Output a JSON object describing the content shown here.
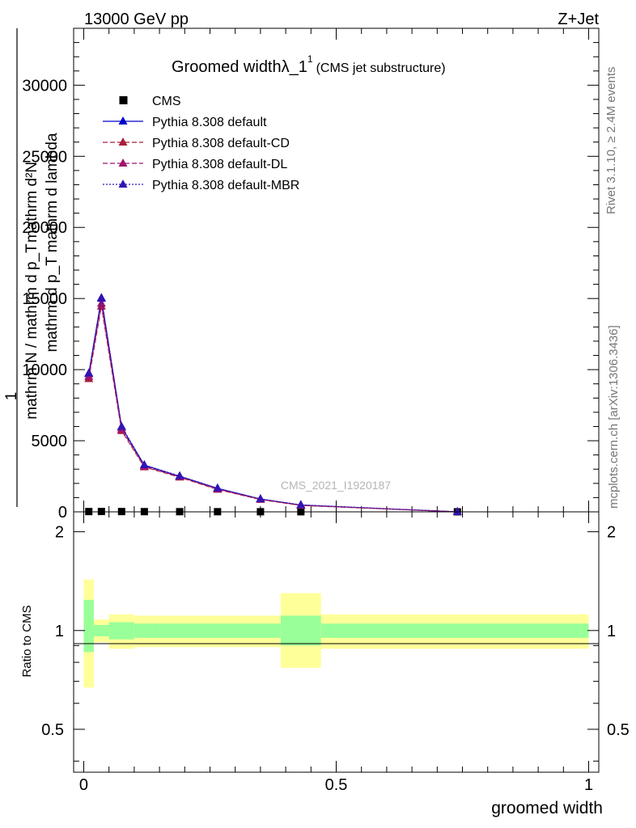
{
  "header": {
    "energy": "13000 GeV pp",
    "process": "Z+Jet",
    "rivet": "Rivet 3.1.10, ≥ 2.4M events",
    "site": "mcplots.cern.ch [arXiv:1306.3436]",
    "analysis": "CMS_2021_I1920187"
  },
  "chart_data": [
    {
      "type": "line",
      "title_main": "Groomed widthλ_1",
      "title_sup": "1",
      "title_sub": "(CMS jet substructure)",
      "ylabel_num": "mathrm d²N",
      "ylabel_den": "mathrm d p_T mathrm d lambda",
      "ylabel_prefix_num": "1",
      "ylabel_prefix_den": "mathrm N / mathrm d p_T",
      "ylim": [
        0,
        34000
      ],
      "xlim": [
        -0.02,
        1.02
      ],
      "yticks": [
        0,
        5000,
        10000,
        15000,
        20000,
        25000,
        30000
      ],
      "ytick_labels": [
        "0",
        "5000",
        "10000",
        "15000",
        "20000",
        "25000",
        "30000"
      ],
      "x": [
        0.01,
        0.035,
        0.075,
        0.12,
        0.19,
        0.265,
        0.35,
        0.43,
        0.74
      ],
      "series": [
        {
          "name": "CMS",
          "color": "#000000",
          "marker": "square",
          "values": [
            20,
            25,
            20,
            15,
            12,
            10,
            8,
            5,
            2
          ]
        },
        {
          "name": "Pythia 8.308 default",
          "color": "#0000cc",
          "marker": "triangle",
          "line": "solid",
          "values": [
            9700,
            15000,
            5950,
            3280,
            2500,
            1650,
            900,
            480,
            0
          ]
        },
        {
          "name": "Pythia 8.308 default-CD",
          "color": "#aa1e3c",
          "marker": "triangle",
          "line": "dashed",
          "values": [
            9350,
            14450,
            5700,
            3150,
            2430,
            1570,
            860,
            450,
            0
          ]
        },
        {
          "name": "Pythia 8.308 default-DL",
          "color": "#a0146e",
          "marker": "triangle",
          "line": "dashed",
          "values": [
            9500,
            14650,
            5800,
            3200,
            2460,
            1600,
            880,
            460,
            0
          ]
        },
        {
          "name": "Pythia 8.308 default-MBR",
          "color": "#3214b4",
          "marker": "triangle",
          "line": "dotted",
          "values": [
            9750,
            15050,
            6000,
            3300,
            2520,
            1660,
            910,
            490,
            0
          ]
        }
      ],
      "legend": "top-left"
    },
    {
      "type": "area",
      "ylabel": "Ratio to CMS",
      "xlabel": "groomed width",
      "ylim": [
        0.37,
        2.3
      ],
      "log_y": true,
      "yticks": [
        0.5,
        1,
        2
      ],
      "ytick_labels": [
        "0.5",
        "1",
        "2"
      ],
      "xticks": [
        0,
        0.5,
        1
      ],
      "xtick_labels": [
        "0",
        "0.5",
        "1"
      ],
      "bins": [
        {
          "lo": 0.0,
          "hi": 0.02,
          "stat_lo": 0.86,
          "stat_hi": 1.24,
          "tot_lo": 0.67,
          "tot_hi": 1.43
        },
        {
          "lo": 0.02,
          "hi": 0.05,
          "stat_lo": 0.96,
          "stat_hi": 1.04,
          "tot_lo": 0.92,
          "tot_hi": 1.08
        },
        {
          "lo": 0.05,
          "hi": 0.1,
          "stat_lo": 0.94,
          "stat_hi": 1.06,
          "tot_lo": 0.88,
          "tot_hi": 1.12
        },
        {
          "lo": 0.1,
          "hi": 0.15,
          "stat_lo": 0.95,
          "stat_hi": 1.05,
          "tot_lo": 0.89,
          "tot_hi": 1.11
        },
        {
          "lo": 0.15,
          "hi": 0.39,
          "stat_lo": 0.95,
          "stat_hi": 1.05,
          "tot_lo": 0.89,
          "tot_hi": 1.11
        },
        {
          "lo": 0.39,
          "hi": 0.47,
          "stat_lo": 0.9,
          "stat_hi": 1.11,
          "tot_lo": 0.77,
          "tot_hi": 1.3
        },
        {
          "lo": 0.47,
          "hi": 1.0,
          "stat_lo": 0.95,
          "stat_hi": 1.05,
          "tot_lo": 0.88,
          "tot_hi": 1.12
        }
      ],
      "colors": {
        "stat": "#99ff99",
        "total": "#ffff99"
      }
    }
  ]
}
